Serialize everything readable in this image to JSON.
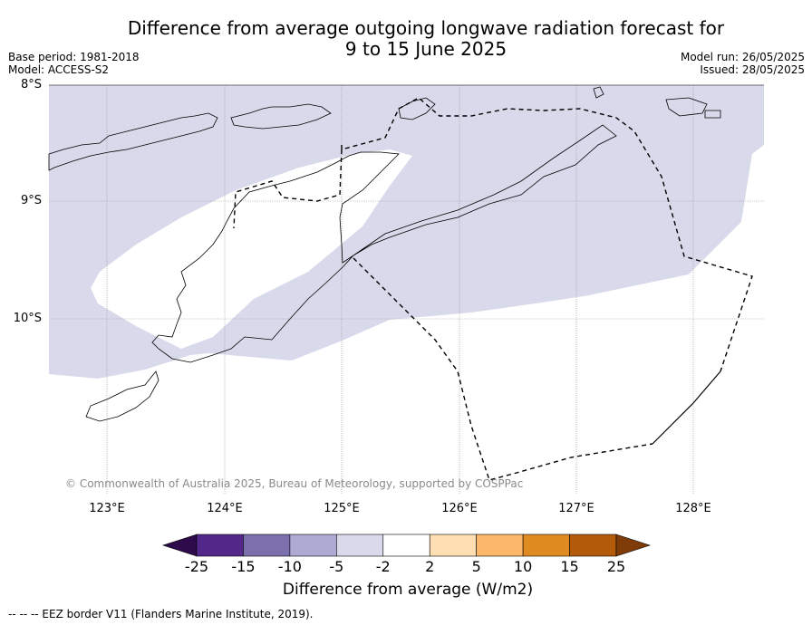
{
  "title_line1": "Difference from average outgoing longwave radiation forecast for",
  "title_line2": "9 to 15 June 2025",
  "base_period": "Base period: 1981-2018",
  "model": "Model: ACCESS-S2",
  "model_run": "Model run: 26/05/2025",
  "issued": "Issued: 28/05/2025",
  "lat_labels": [
    "8°S",
    "9°S",
    "10°S"
  ],
  "lon_labels": [
    "123°E",
    "124°E",
    "125°E",
    "126°E",
    "127°E",
    "128°E"
  ],
  "copyright": "© Commonwealth of Australia 2025, Bureau of Meteorology, supported by COSPPac",
  "colorbar": {
    "ticks": [
      "-25",
      "-15",
      "-10",
      "-5",
      "-2",
      "2",
      "5",
      "10",
      "15",
      "25"
    ],
    "colors": [
      "#2e0b4a",
      "#54288a",
      "#7b70ac",
      "#afaad3",
      "#d8d9ea",
      "#ffffff",
      "#fddfb3",
      "#fbb76a",
      "#e08a22",
      "#b35a0b",
      "#7f3b08"
    ],
    "label": "Difference from average (W/m2)"
  },
  "shading_color": "#d8d9ea",
  "footer": "--  --  -- EEZ border V11 (Flanders Marine Institute, 2019)."
}
